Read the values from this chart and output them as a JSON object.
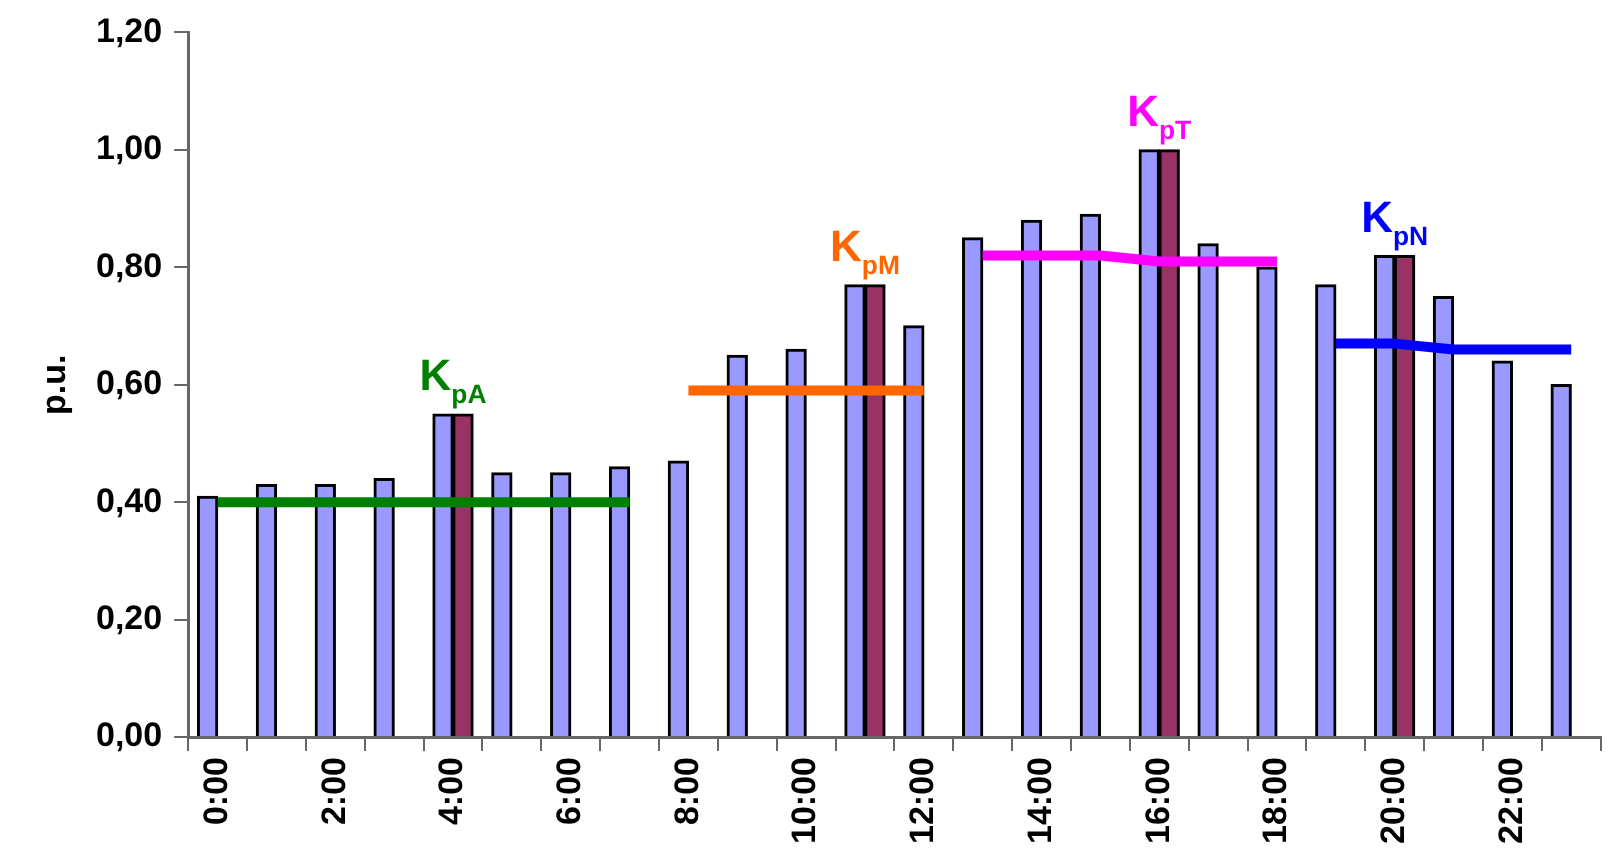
{
  "chart_data": {
    "type": "bar",
    "ylabel": "p.u.",
    "categories": [
      "0:00",
      null,
      "2:00",
      null,
      "4:00",
      null,
      "6:00",
      null,
      "8:00",
      null,
      "10:00",
      null,
      "12:00",
      null,
      "14:00",
      null,
      "16:00",
      null,
      "18:00",
      null,
      "20:00",
      null,
      "22:00",
      null
    ],
    "series": [
      {
        "color": "#9999ff",
        "values": [
          0.41,
          0.43,
          0.43,
          0.44,
          0.55,
          0.45,
          0.45,
          0.46,
          0.47,
          0.65,
          0.66,
          0.77,
          0.7,
          0.85,
          0.88,
          0.89,
          1.0,
          0.84,
          0.8,
          0.77,
          0.82,
          0.75,
          0.64,
          0.6
        ]
      },
      {
        "color": "#993366",
        "values": [
          null,
          null,
          null,
          null,
          0.55,
          null,
          null,
          null,
          null,
          null,
          null,
          0.77,
          null,
          null,
          null,
          null,
          1.0,
          null,
          null,
          null,
          0.82,
          null,
          null,
          null
        ]
      },
      {
        "type": "line",
        "name": "K$_{pA}$",
        "color": "#008000",
        "values": [
          0.4,
          0.4,
          0.4,
          0.4,
          0.4,
          0.4,
          0.4,
          0.4,
          null,
          null,
          null,
          null,
          null,
          null,
          null,
          null,
          null,
          null,
          null,
          null,
          null,
          null,
          null,
          null
        ]
      },
      {
        "type": "line",
        "name": "K$_{pM}$",
        "color": "#ff6600",
        "values": [
          null,
          null,
          null,
          null,
          null,
          null,
          null,
          null,
          0.59,
          0.59,
          0.59,
          0.59,
          0.59,
          null,
          null,
          null,
          null,
          null,
          null,
          null,
          null,
          null,
          null,
          null
        ]
      },
      {
        "type": "line",
        "name": "K$_{pT}$",
        "color": "#ff00ff",
        "values": [
          null,
          null,
          null,
          null,
          null,
          null,
          null,
          null,
          null,
          null,
          null,
          null,
          null,
          0.82,
          0.82,
          0.82,
          0.81,
          0.81,
          0.81,
          null,
          null,
          null,
          null,
          null
        ]
      },
      {
        "type": "line",
        "name": "K$_{pN}$",
        "color": "#0000ff",
        "values": [
          null,
          null,
          null,
          null,
          null,
          null,
          null,
          null,
          null,
          null,
          null,
          null,
          null,
          null,
          null,
          null,
          null,
          null,
          null,
          0.67,
          0.67,
          0.66,
          0.66,
          0.66
        ]
      }
    ],
    "ylim": [
      0,
      1.2
    ],
    "yticks": [
      {
        "value": 0,
        "label": "0,00"
      },
      {
        "value": 0.2,
        "label": "0,20"
      },
      {
        "value": 0.4,
        "label": "0,40"
      },
      {
        "value": 0.6,
        "label": "0,60"
      },
      {
        "value": 0.8,
        "label": "0,80"
      },
      {
        "value": 1.0,
        "label": "1,00"
      },
      {
        "value": 1.2,
        "label": "1,20"
      }
    ],
    "grid": false,
    "legend": false,
    "marker": "none",
    "line_style": "solid"
  }
}
